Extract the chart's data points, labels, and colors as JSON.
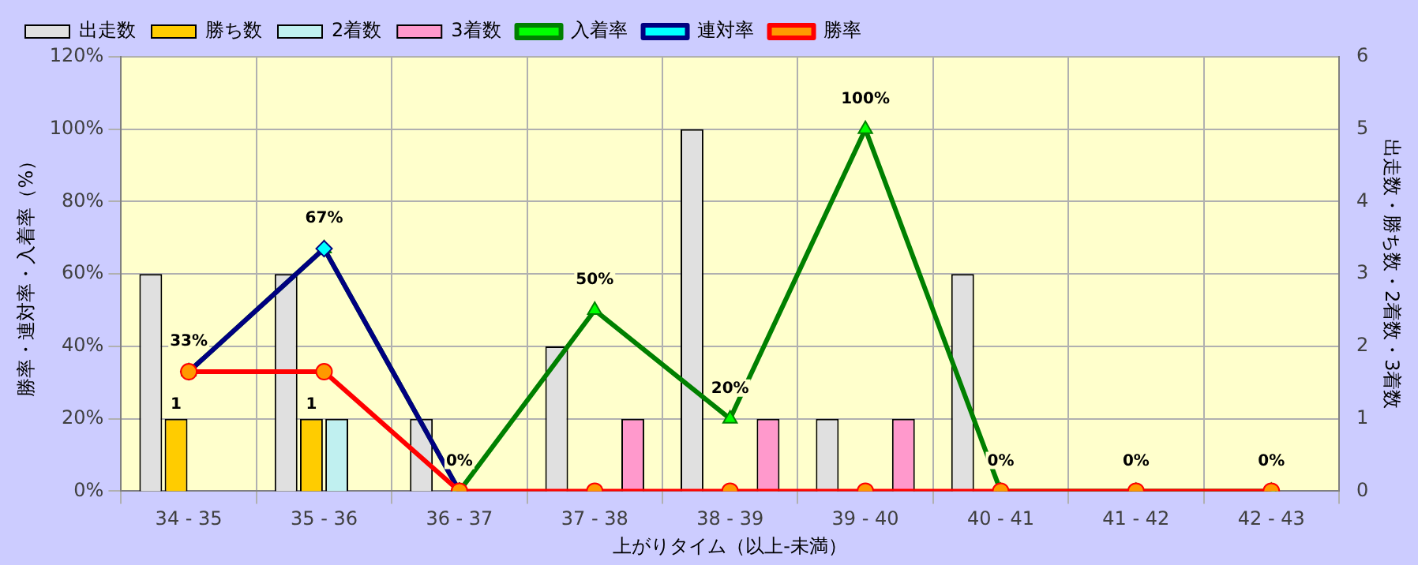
{
  "chart_data": {
    "type": "bar",
    "categories": [
      "34 - 35",
      "35 - 36",
      "36 - 37",
      "37 - 38",
      "38 - 39",
      "39 - 40",
      "40 - 41",
      "41 - 42",
      "42 - 43"
    ],
    "xlabel": "上がりタイム（以上-未満）",
    "ylabel": "勝率・連対率・入着率（%）",
    "y2label": "出走数・勝ち数・2着数・3着数",
    "series": [
      {
        "name": "出走数",
        "axis": "y2",
        "color": "#e0e0e0",
        "values": [
          3,
          3,
          1,
          2,
          5,
          1,
          3,
          0,
          0
        ]
      },
      {
        "name": "勝ち数",
        "axis": "y2",
        "color": "#ffcc00",
        "values": [
          1,
          1,
          0,
          0,
          0,
          0,
          0,
          0,
          0
        ],
        "value_labels": [
          "1",
          "1",
          null,
          null,
          null,
          null,
          null,
          null,
          null
        ]
      },
      {
        "name": "2着数",
        "axis": "y2",
        "color": "#c0f0f0",
        "values": [
          0,
          1,
          0,
          0,
          0,
          0,
          0,
          0,
          0
        ]
      },
      {
        "name": "3着数",
        "axis": "y2",
        "color": "#ff99cc",
        "values": [
          0,
          0,
          0,
          1,
          1,
          1,
          0,
          0,
          0
        ]
      },
      {
        "name": "入着率",
        "type": "line",
        "marker": "triangle",
        "color": "#008000",
        "values": [
          33,
          67,
          0,
          50,
          20,
          100,
          0,
          0,
          0
        ],
        "value_labels": [
          "33%",
          "67%",
          "0%",
          "50%",
          "20%",
          "100%",
          "0%",
          "0%",
          "0%"
        ]
      },
      {
        "name": "連対率",
        "type": "line",
        "marker": "diamond",
        "color": "#000080",
        "values": [
          33,
          67,
          0,
          null,
          null,
          null,
          null,
          null,
          null
        ]
      },
      {
        "name": "勝率",
        "type": "line",
        "marker": "circle",
        "color": "#ff0000",
        "values": [
          33,
          33,
          0,
          0,
          0,
          0,
          0,
          0,
          0
        ]
      }
    ],
    "ylim": [
      0,
      120
    ],
    "yticks": [
      {
        "value": 0,
        "label": "0%"
      },
      {
        "value": 20,
        "label": "20%"
      },
      {
        "value": 40,
        "label": "40%"
      },
      {
        "value": 60,
        "label": "60%"
      },
      {
        "value": 80,
        "label": "80%"
      },
      {
        "value": 100,
        "label": "100%"
      },
      {
        "value": 120,
        "label": "120%"
      }
    ],
    "y2lim": [
      0,
      6
    ],
    "y2ticks": [
      0,
      1,
      2,
      3,
      4,
      5,
      6
    ],
    "grid": true,
    "legend": "top"
  }
}
